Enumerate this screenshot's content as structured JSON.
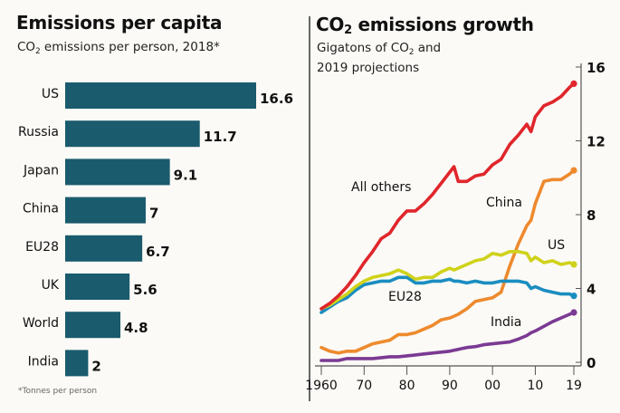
{
  "left_panel": {
    "title": "Emissions per capita",
    "subtitle_pre": "CO",
    "subtitle_sub": "2",
    "subtitle_post": " emissions per person, 2018*",
    "footnote": "*Tonnes per person"
  },
  "right_panel": {
    "title_pre": "CO",
    "title_sub": "2",
    "title_post": " emissions growth",
    "subtitle_line1_pre": "Gigatons of CO",
    "subtitle_line1_sub": "2",
    "subtitle_line1_post": " and",
    "subtitle_line2": "2019 projections"
  },
  "colors": {
    "bar": "#1a5b6d",
    "All others": "#e0262b",
    "China": "#ee8a2e",
    "US": "#cfd21a",
    "EU28": "#1a8dc0",
    "India": "#7b3a93",
    "axis": "#555555"
  },
  "chart_data": [
    {
      "type": "bar",
      "orientation": "horizontal",
      "title": "Emissions per capita",
      "subtitle": "CO2 emissions per person, 2018*",
      "categories": [
        "US",
        "Russia",
        "Japan",
        "China",
        "EU28",
        "UK",
        "World",
        "India"
      ],
      "values": [
        16.6,
        11.7,
        9.1,
        7,
        6.7,
        5.6,
        4.8,
        2
      ],
      "value_labels": [
        "16.6",
        "11.7",
        "9.1",
        "7",
        "6.7",
        "5.6",
        "4.8",
        "2"
      ],
      "xlabel": "",
      "ylabel": "",
      "units": "Tonnes per person",
      "footnote": "*Tonnes per person"
    },
    {
      "type": "line",
      "title": "CO2 emissions growth",
      "subtitle": "Gigatons of CO2 and 2019 projections",
      "xlabel": "",
      "ylabel": "",
      "xlim": [
        1960,
        2019
      ],
      "ylim": [
        0,
        16
      ],
      "x_ticks": [
        1960,
        1970,
        1980,
        1990,
        2000,
        2010,
        2019
      ],
      "x_tick_labels": [
        "1960",
        "70",
        "80",
        "90",
        "00",
        "10",
        "19"
      ],
      "y_ticks": [
        0,
        4,
        8,
        12,
        16
      ],
      "y_tick_labels": [
        "0",
        "4",
        "8",
        "12",
        "16"
      ],
      "y_axis_side": "right",
      "grid": false,
      "legend": "inline labels",
      "x": [
        1960,
        1962,
        1964,
        1966,
        1968,
        1970,
        1972,
        1974,
        1976,
        1978,
        1980,
        1982,
        1984,
        1986,
        1988,
        1990,
        1991,
        1992,
        1994,
        1996,
        1998,
        2000,
        2002,
        2004,
        2006,
        2008,
        2009,
        2010,
        2012,
        2014,
        2016,
        2018,
        2019
      ],
      "series": [
        {
          "name": "All others",
          "label": "All others",
          "values": [
            2.9,
            3.2,
            3.6,
            4.1,
            4.7,
            5.4,
            6.0,
            6.7,
            7.0,
            7.7,
            8.2,
            8.2,
            8.6,
            9.1,
            9.7,
            10.3,
            10.6,
            9.8,
            9.8,
            10.1,
            10.2,
            10.7,
            11.0,
            11.8,
            12.3,
            12.9,
            12.5,
            13.3,
            13.9,
            14.1,
            14.4,
            14.9,
            15.1
          ]
        },
        {
          "name": "China",
          "label": "China",
          "values": [
            0.8,
            0.6,
            0.5,
            0.6,
            0.6,
            0.8,
            1.0,
            1.1,
            1.2,
            1.5,
            1.5,
            1.6,
            1.8,
            2.0,
            2.3,
            2.4,
            2.5,
            2.6,
            2.9,
            3.3,
            3.4,
            3.5,
            3.8,
            5.2,
            6.4,
            7.4,
            7.7,
            8.6,
            9.8,
            9.9,
            9.9,
            10.2,
            10.4
          ]
        },
        {
          "name": "US",
          "label": "US",
          "values": [
            2.9,
            3.1,
            3.4,
            3.7,
            4.1,
            4.4,
            4.6,
            4.7,
            4.8,
            5.0,
            4.8,
            4.5,
            4.6,
            4.6,
            4.9,
            5.1,
            5.0,
            5.1,
            5.3,
            5.5,
            5.6,
            5.9,
            5.8,
            6.0,
            6.0,
            5.9,
            5.5,
            5.7,
            5.4,
            5.5,
            5.3,
            5.4,
            5.3
          ]
        },
        {
          "name": "EU28",
          "label": "EU28",
          "values": [
            2.7,
            3.0,
            3.3,
            3.5,
            3.9,
            4.2,
            4.3,
            4.4,
            4.4,
            4.6,
            4.6,
            4.3,
            4.3,
            4.4,
            4.4,
            4.5,
            4.4,
            4.4,
            4.3,
            4.4,
            4.3,
            4.3,
            4.4,
            4.4,
            4.4,
            4.3,
            4.0,
            4.1,
            3.9,
            3.8,
            3.7,
            3.7,
            3.6
          ]
        },
        {
          "name": "India",
          "label": "India",
          "values": [
            0.1,
            0.1,
            0.1,
            0.2,
            0.2,
            0.2,
            0.2,
            0.25,
            0.3,
            0.3,
            0.35,
            0.4,
            0.45,
            0.5,
            0.55,
            0.6,
            0.65,
            0.7,
            0.8,
            0.85,
            0.95,
            1.0,
            1.05,
            1.1,
            1.25,
            1.45,
            1.6,
            1.7,
            1.95,
            2.2,
            2.4,
            2.6,
            2.7
          ]
        }
      ]
    }
  ]
}
